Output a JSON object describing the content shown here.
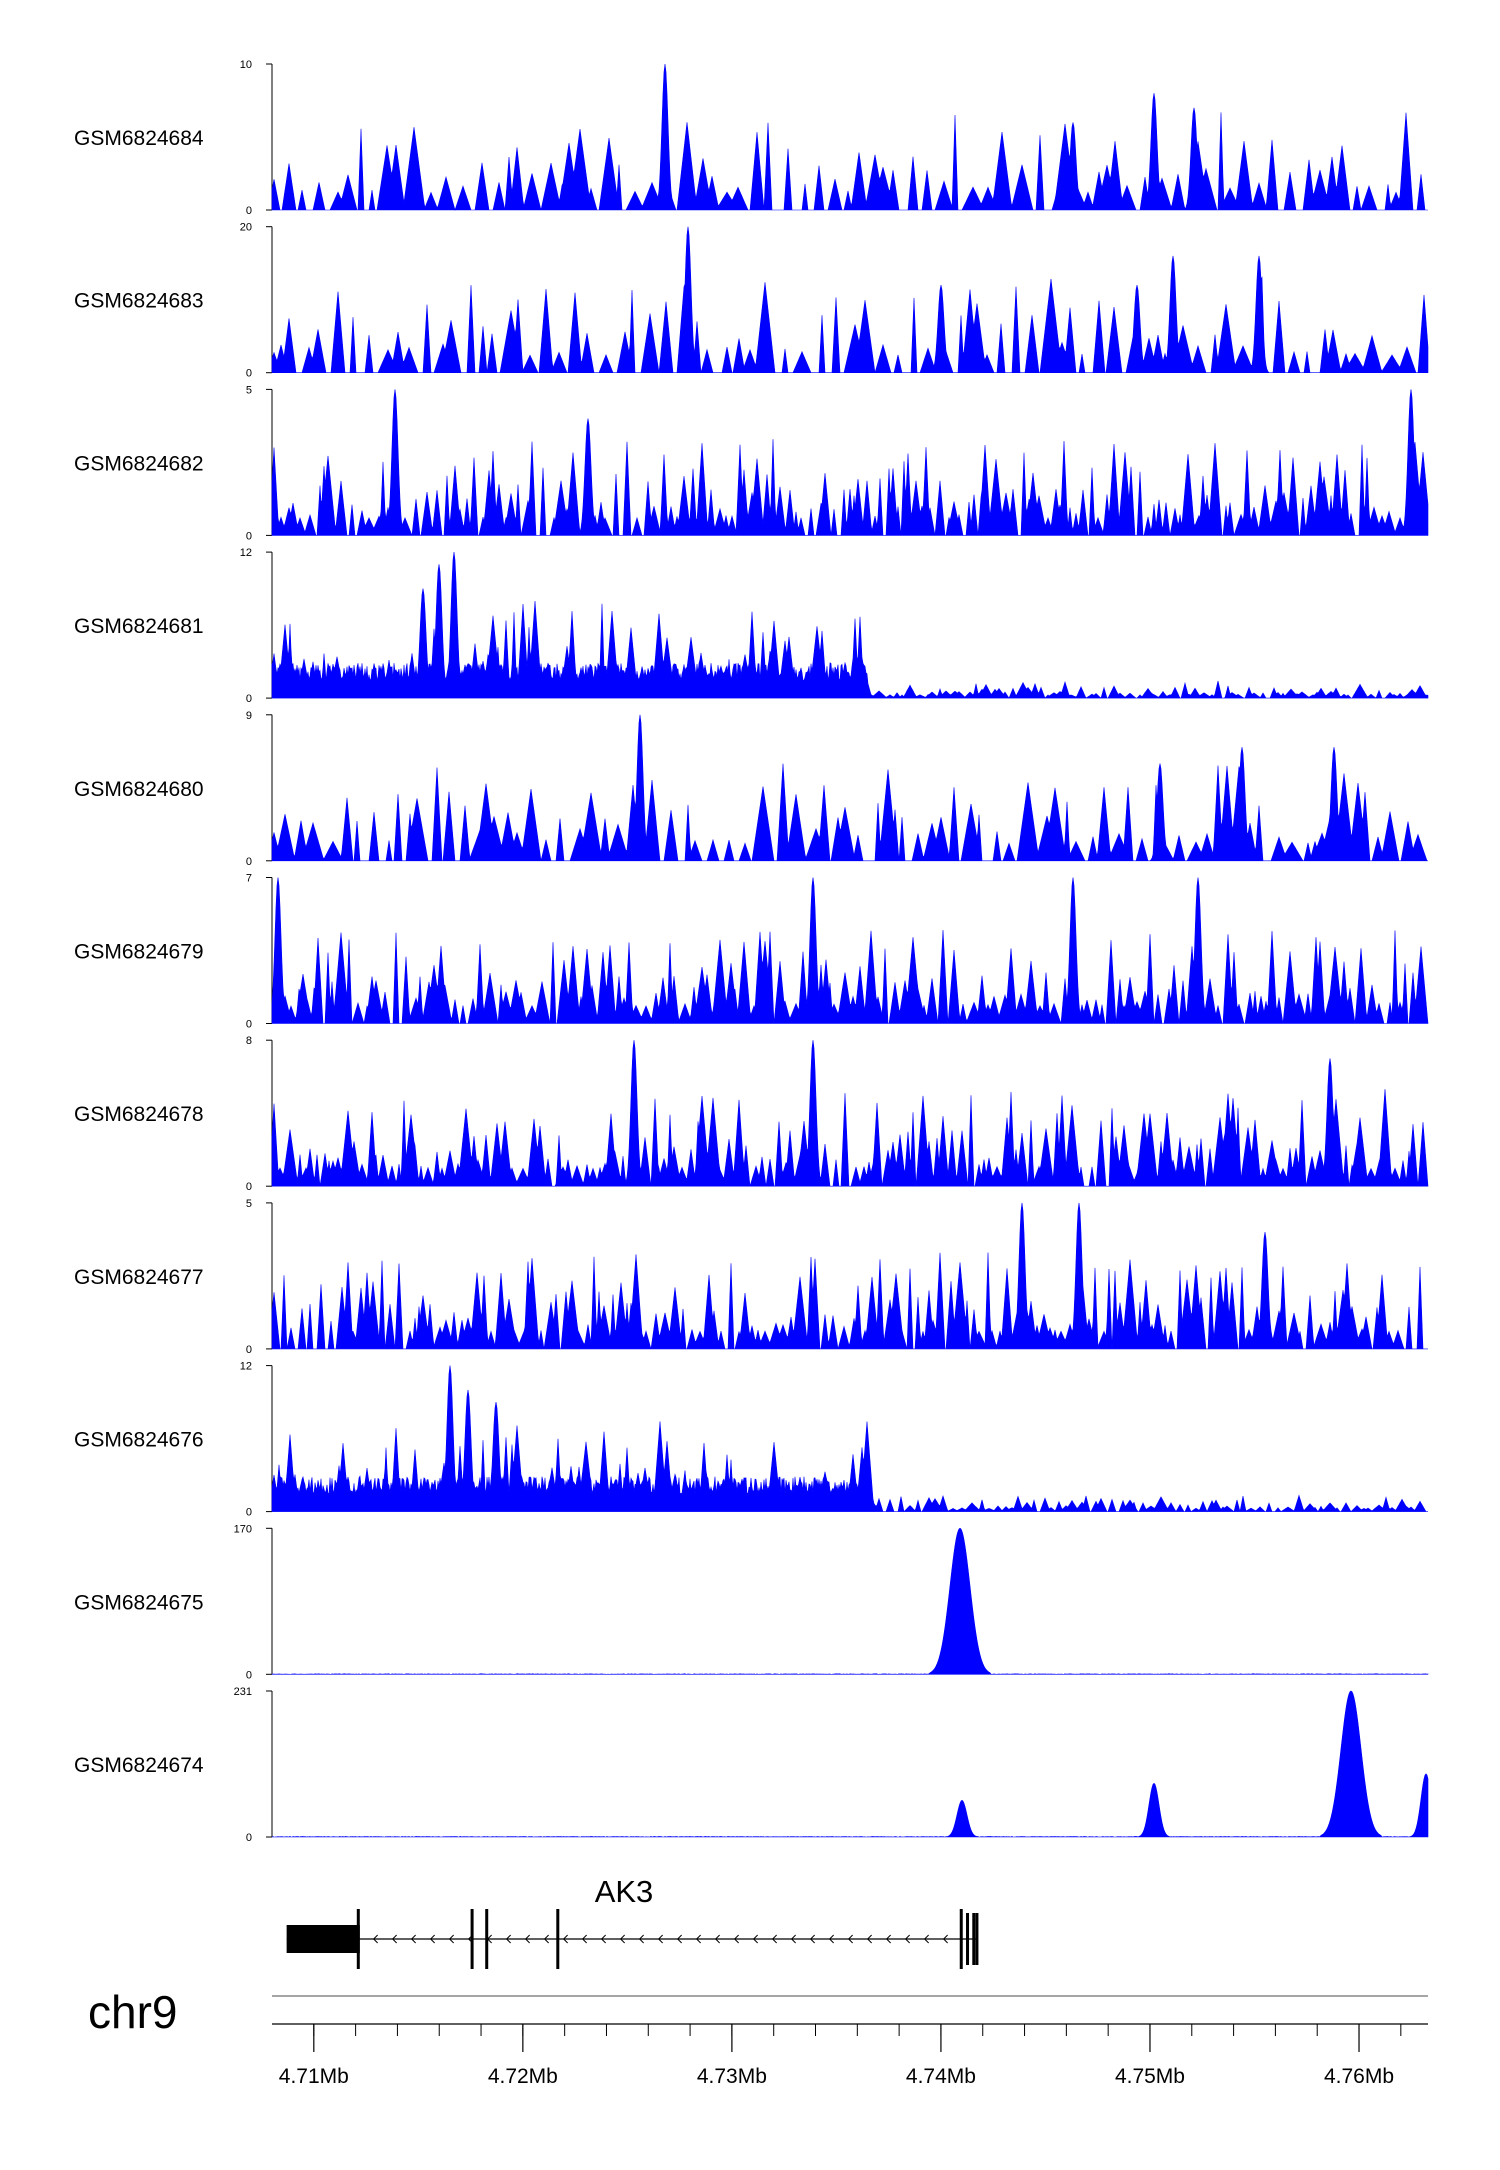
{
  "colors": {
    "signal": "#0000ff",
    "axis": "#000000",
    "gene": "#000000",
    "ruler": "#888888"
  },
  "chart_data": {
    "type": "area",
    "title": "",
    "x_range": [
      4708000,
      4763300
    ],
    "tracks": [
      {
        "name": "GSM6824684",
        "ymin": 0,
        "ymax": 10,
        "profile": "sparse",
        "seed": 684,
        "peaks": [
          [
            4726800,
            10
          ],
          [
            4750200,
            8
          ],
          [
            4752100,
            7
          ],
          [
            4746300,
            6
          ]
        ]
      },
      {
        "name": "GSM6824683",
        "ymin": 0,
        "ymax": 20,
        "profile": "sparse",
        "seed": 683,
        "peaks": [
          [
            4727900,
            20
          ],
          [
            4751100,
            16
          ],
          [
            4755200,
            16
          ],
          [
            4749400,
            12
          ],
          [
            4740000,
            12
          ]
        ]
      },
      {
        "name": "GSM6824682",
        "ymin": 0,
        "ymax": 5,
        "profile": "dense",
        "seed": 682,
        "peaks": [
          [
            4713900,
            5
          ],
          [
            4762500,
            5
          ],
          [
            4723100,
            4
          ]
        ]
      },
      {
        "name": "GSM6824681",
        "ymin": 0,
        "ymax": 12,
        "profile": "broad-left",
        "seed": 681,
        "peaks": [
          [
            4716700,
            12
          ],
          [
            4716000,
            11
          ],
          [
            4715200,
            9
          ]
        ]
      },
      {
        "name": "GSM6824680",
        "ymin": 0,
        "ymax": 9,
        "profile": "sparse",
        "seed": 680,
        "peaks": [
          [
            4725600,
            9
          ],
          [
            4758800,
            7
          ],
          [
            4750500,
            6
          ],
          [
            4754400,
            7
          ]
        ]
      },
      {
        "name": "GSM6824679",
        "ymin": 0,
        "ymax": 7,
        "profile": "dense",
        "seed": 679,
        "peaks": [
          [
            4746300,
            7
          ],
          [
            4752300,
            7
          ],
          [
            4733900,
            7
          ],
          [
            4708300,
            7
          ]
        ]
      },
      {
        "name": "GSM6824678",
        "ymin": 0,
        "ymax": 8,
        "profile": "dense",
        "seed": 678,
        "peaks": [
          [
            4725300,
            8
          ],
          [
            4733900,
            8
          ],
          [
            4758600,
            7
          ]
        ]
      },
      {
        "name": "GSM6824677",
        "ymin": 0,
        "ymax": 5,
        "profile": "dense",
        "seed": 677,
        "peaks": [
          [
            4743900,
            5
          ],
          [
            4746600,
            5
          ],
          [
            4755500,
            4
          ]
        ]
      },
      {
        "name": "GSM6824676",
        "ymin": 0,
        "ymax": 12,
        "profile": "broad-left",
        "seed": 676,
        "peaks": [
          [
            4716500,
            12
          ],
          [
            4717400,
            10
          ],
          [
            4718700,
            9
          ]
        ]
      },
      {
        "name": "GSM6824675",
        "ymin": 0,
        "ymax": 170,
        "profile": "flat",
        "seed": 675,
        "peaks": [
          [
            4740900,
            170
          ],
          [
            4741200,
            130
          ],
          [
            4740500,
            80
          ]
        ]
      },
      {
        "name": "GSM6824674",
        "ymin": 0,
        "ymax": 231,
        "profile": "flat",
        "seed": 674,
        "peaks": [
          [
            4759600,
            231
          ],
          [
            4763200,
            100
          ],
          [
            4750200,
            85
          ],
          [
            4741000,
            58
          ]
        ]
      }
    ],
    "gene": {
      "name": "AK3",
      "chrom": "chr9",
      "strand": "-",
      "start": 4708700,
      "end": 4741700,
      "exons": [
        [
          4708700,
          4712200
        ],
        [
          4717500,
          4717600
        ],
        [
          4718200,
          4718300
        ],
        [
          4721600,
          4721700
        ],
        [
          4740900,
          4741000
        ],
        [
          4741200,
          4741300
        ],
        [
          4741500,
          4741550
        ],
        [
          4741650,
          4741700
        ]
      ]
    },
    "x_ticks": [
      {
        "pos": 4710000,
        "label": "4.71Mb"
      },
      {
        "pos": 4720000,
        "label": "4.72Mb"
      },
      {
        "pos": 4730000,
        "label": "4.73Mb"
      },
      {
        "pos": 4740000,
        "label": "4.74Mb"
      },
      {
        "pos": 4750000,
        "label": "4.75Mb"
      },
      {
        "pos": 4760000,
        "label": "4.76Mb"
      }
    ],
    "minor_tick_step": 2000
  }
}
